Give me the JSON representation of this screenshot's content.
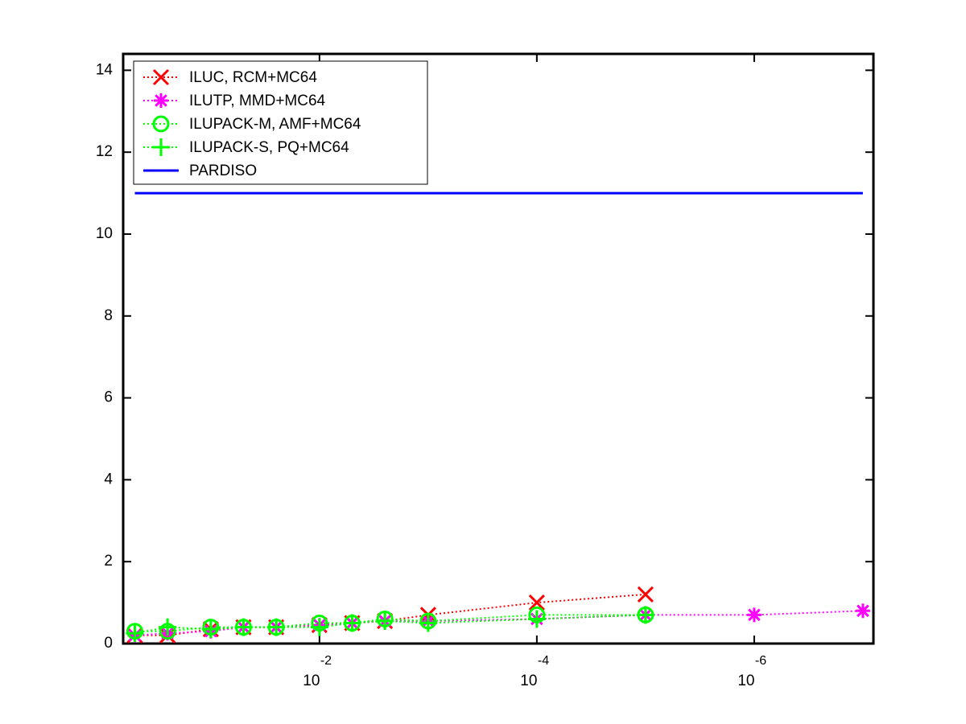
{
  "chart_data": {
    "type": "line",
    "xscale": "log",
    "legend": "upper left",
    "grid": false,
    "xlim": [
      0.64,
      8e-08
    ],
    "ylim": [
      0,
      14.4
    ],
    "xticks": [
      {
        "value": 0.01,
        "label": "10",
        "exponent": "-2"
      },
      {
        "value": 0.0001,
        "label": "10",
        "exponent": "-4"
      },
      {
        "value": 1e-06,
        "label": "10",
        "exponent": "-6"
      }
    ],
    "yticks": [
      0,
      2,
      4,
      6,
      8,
      10,
      12,
      14
    ],
    "series": [
      {
        "name": "ILUC, RCM+MC64",
        "color": "#ff0000",
        "marker": "x",
        "line_style": "dotted",
        "x": [
          0.5,
          0.25,
          0.1,
          0.05,
          0.025,
          0.01,
          0.005,
          0.0025,
          0.001,
          0.0001,
          1e-05
        ],
        "values": [
          0.2,
          0.2,
          0.35,
          0.4,
          0.4,
          0.45,
          0.5,
          0.55,
          0.7,
          1.0,
          1.2
        ]
      },
      {
        "name": "ILUTP, MMD+MC64",
        "color": "#ff00ff",
        "marker": "star",
        "line_style": "dotted",
        "x": [
          0.5,
          0.25,
          0.1,
          0.05,
          0.025,
          0.01,
          0.005,
          0.0025,
          0.001,
          0.0001,
          1e-05,
          1e-06,
          1e-07
        ],
        "values": [
          0.2,
          0.25,
          0.3,
          0.4,
          0.4,
          0.45,
          0.5,
          0.55,
          0.55,
          0.6,
          0.7,
          0.7,
          0.8
        ]
      },
      {
        "name": "ILUPACK-M, AMF+MC64",
        "color": "#00ff00",
        "marker": "circle",
        "line_style": "dotted",
        "x": [
          0.5,
          0.25,
          0.1,
          0.05,
          0.025,
          0.01,
          0.005,
          0.0025,
          0.001,
          0.0001,
          1e-05
        ],
        "values": [
          0.3,
          0.3,
          0.4,
          0.4,
          0.4,
          0.5,
          0.5,
          0.6,
          0.55,
          0.7,
          0.7
        ]
      },
      {
        "name": "ILUPACK-S, PQ+MC64",
        "color": "#00ff00",
        "marker": "plus",
        "line_style": "dotted",
        "x": [
          0.5,
          0.25,
          0.1,
          0.05,
          0.025,
          0.01,
          0.005,
          0.0025,
          0.001,
          0.0001,
          1e-05
        ],
        "values": [
          0.25,
          0.4,
          0.35,
          0.4,
          0.4,
          0.4,
          0.5,
          0.55,
          0.5,
          0.6,
          0.7
        ]
      },
      {
        "name": "PARDISO",
        "color": "#0000ff",
        "marker": "none",
        "line_style": "solid",
        "x": [
          0.5,
          1e-07
        ],
        "values": [
          11,
          11
        ]
      }
    ]
  }
}
